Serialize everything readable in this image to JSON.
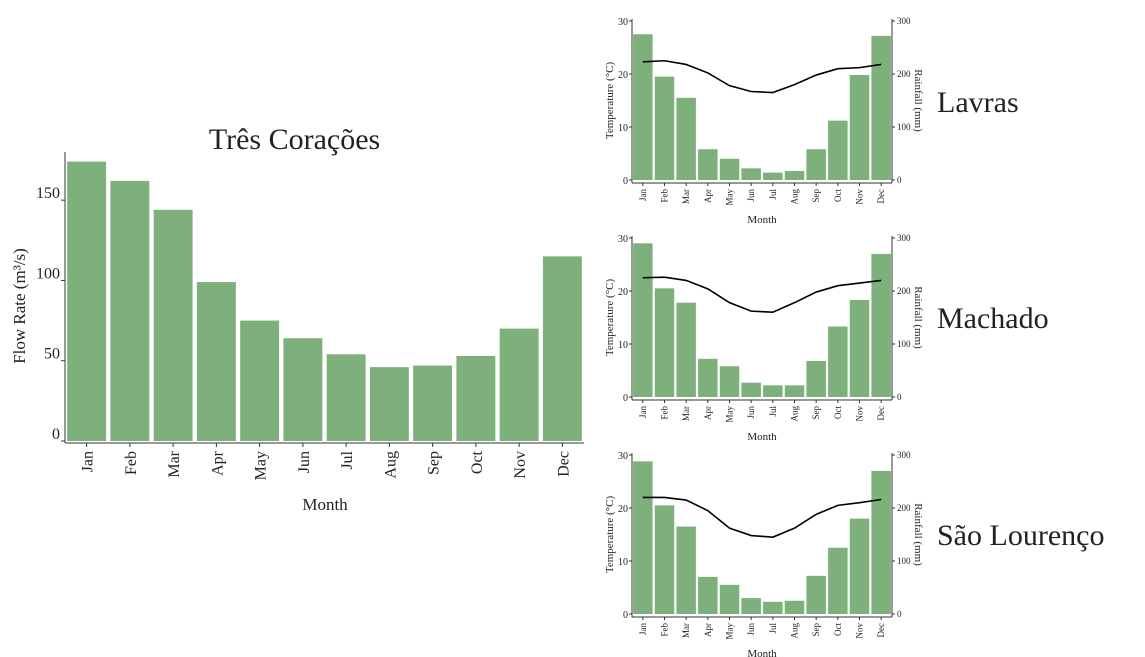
{
  "colors": {
    "bar": "#7db07b",
    "line": "#000000",
    "axis": "#333333"
  },
  "chart_data": [
    {
      "type": "bar",
      "title": "Três Corações",
      "xlabel": "Month",
      "ylabel": "Flow Rate (m³/s)",
      "categories": [
        "Jan",
        "Feb",
        "Mar",
        "Apr",
        "May",
        "Jun",
        "Jul",
        "Aug",
        "Sep",
        "Oct",
        "Nov",
        "Dec"
      ],
      "values": [
        174,
        162,
        144,
        99,
        75,
        64,
        54,
        46,
        47,
        53,
        70,
        115
      ],
      "yticks": [
        0,
        50,
        100,
        150
      ],
      "ylim": [
        0,
        180
      ]
    },
    {
      "type": "bar+line",
      "title": "Lavras",
      "xlabel": "Month",
      "ylabel_left": "Temperature (°C)",
      "ylabel_right": "Rainfall (mm)",
      "categories": [
        "Jan",
        "Feb",
        "Mar",
        "Apr",
        "May",
        "Jun",
        "Jul",
        "Aug",
        "Sep",
        "Oct",
        "Nov",
        "Dec"
      ],
      "rainfall": [
        275,
        195,
        155,
        58,
        40,
        22,
        14,
        17,
        58,
        112,
        198,
        272
      ],
      "temperature": [
        22.3,
        22.5,
        21.8,
        20.2,
        17.8,
        16.7,
        16.5,
        18.0,
        19.8,
        21.0,
        21.2,
        21.8
      ],
      "yticks_left": [
        0,
        10,
        20,
        30
      ],
      "yticks_right": [
        0,
        100,
        200,
        300
      ],
      "ylim_left": [
        0,
        30
      ],
      "ylim_right": [
        0,
        300
      ]
    },
    {
      "type": "bar+line",
      "title": "Machado",
      "xlabel": "Month",
      "ylabel_left": "Temperature (°C)",
      "ylabel_right": "Rainfall (mm)",
      "categories": [
        "Jan",
        "Feb",
        "Mar",
        "Apr",
        "May",
        "Jun",
        "Jul",
        "Aug",
        "Sep",
        "Oct",
        "Nov",
        "Dec"
      ],
      "rainfall": [
        290,
        205,
        178,
        72,
        58,
        27,
        22,
        22,
        68,
        133,
        183,
        270
      ],
      "temperature": [
        22.5,
        22.6,
        22.0,
        20.4,
        17.8,
        16.2,
        16.0,
        17.8,
        19.8,
        21.0,
        21.5,
        22.0
      ],
      "yticks_left": [
        0,
        10,
        20,
        30
      ],
      "yticks_right": [
        0,
        100,
        200,
        300
      ],
      "ylim_left": [
        0,
        30
      ],
      "ylim_right": [
        0,
        300
      ]
    },
    {
      "type": "bar+line",
      "title": "São Lourenço",
      "xlabel": "Month",
      "ylabel_left": "Temperature (°C)",
      "ylabel_right": "Rainfall (mm)",
      "categories": [
        "Jan",
        "Feb",
        "Mar",
        "Apr",
        "May",
        "Jun",
        "Jul",
        "Aug",
        "Sep",
        "Oct",
        "Nov",
        "Dec"
      ],
      "rainfall": [
        288,
        205,
        165,
        70,
        55,
        30,
        23,
        25,
        72,
        125,
        180,
        270
      ],
      "temperature": [
        22.0,
        22.0,
        21.5,
        19.5,
        16.2,
        14.8,
        14.5,
        16.2,
        18.8,
        20.5,
        21.0,
        21.6
      ],
      "yticks_left": [
        0,
        10,
        20,
        30
      ],
      "yticks_right": [
        0,
        100,
        200,
        300
      ],
      "ylim_left": [
        0,
        30
      ],
      "ylim_right": [
        0,
        300
      ]
    }
  ]
}
